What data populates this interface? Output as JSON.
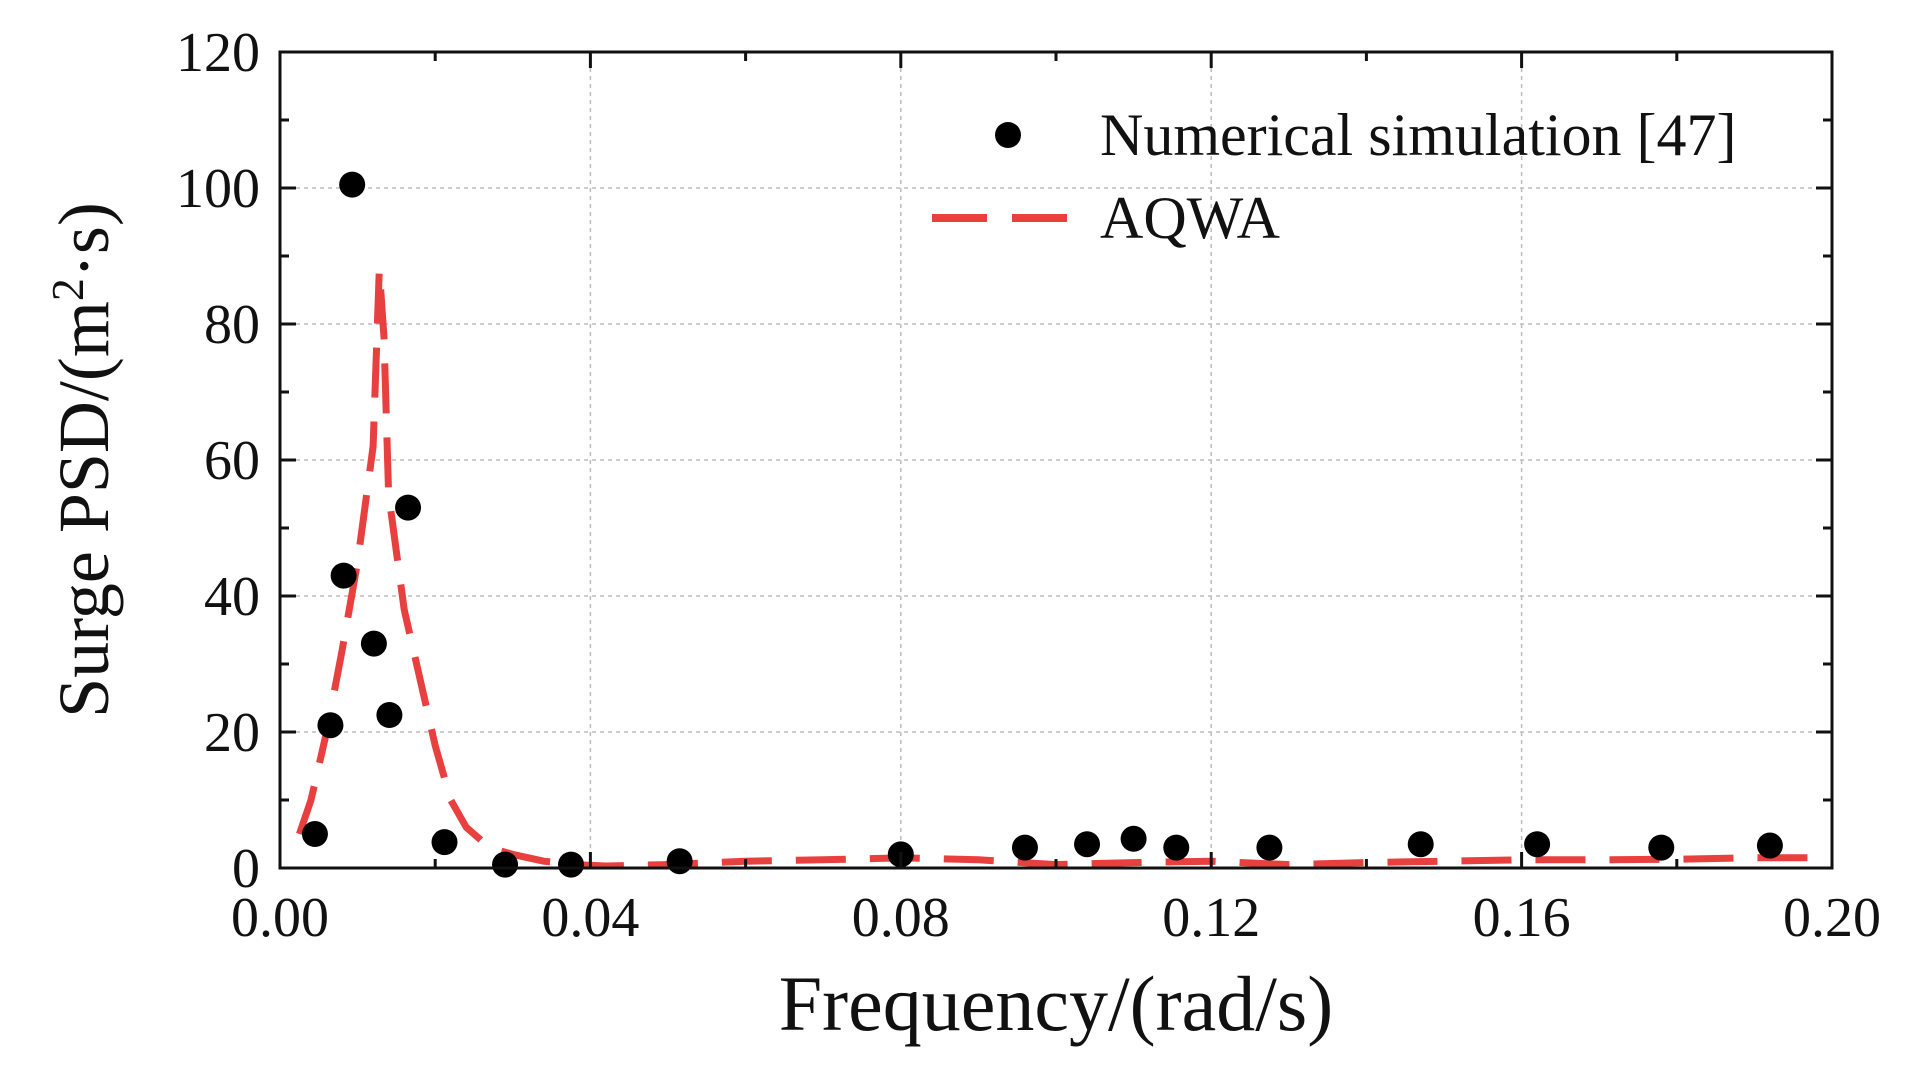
{
  "colors": {
    "points": "#000000",
    "aqwa": "#e8403f",
    "grid": "#bdbdbd",
    "axis": "#111111"
  },
  "chart_data": {
    "type": "scatter",
    "xlabel": "Frequency/(rad/s)",
    "ylabel_prefix": "Surge PSD/(m",
    "ylabel_superscript": "2",
    "ylabel_suffix": "·s)",
    "xlim": [
      0.0,
      0.2
    ],
    "ylim": [
      0,
      120
    ],
    "xticks": [
      0.0,
      0.04,
      0.08,
      0.12,
      0.16,
      0.2
    ],
    "xtick_labels": [
      "0.00",
      "0.04",
      "0.08",
      "0.12",
      "0.16",
      "0.20"
    ],
    "yticks": [
      0,
      20,
      40,
      60,
      80,
      100,
      120
    ],
    "ytick_labels": [
      "0",
      "20",
      "40",
      "60",
      "80",
      "100",
      "120"
    ],
    "grid": true,
    "legend_position": "top-right",
    "series": [
      {
        "name": "Numerical simulation [47]",
        "kind": "scatter",
        "color": "#000000",
        "x": [
          0.0045,
          0.0065,
          0.0082,
          0.0093,
          0.0121,
          0.0141,
          0.0165,
          0.0212,
          0.029,
          0.0375,
          0.0515,
          0.08,
          0.096,
          0.104,
          0.11,
          0.1155,
          0.1275,
          0.147,
          0.162,
          0.178,
          0.192
        ],
        "y": [
          5,
          21,
          43,
          100.5,
          33,
          22.5,
          53,
          3.8,
          0.5,
          0.5,
          1,
          2,
          3,
          3.5,
          4.3,
          3,
          3,
          3.5,
          3.5,
          3,
          3.3
        ]
      },
      {
        "name": "AQWA",
        "kind": "line",
        "style": "dashed",
        "color": "#e8403f",
        "x": [
          0.0025,
          0.004,
          0.006,
          0.008,
          0.01,
          0.012,
          0.0128,
          0.0134,
          0.014,
          0.016,
          0.018,
          0.02,
          0.022,
          0.024,
          0.027,
          0.03,
          0.034,
          0.038,
          0.042,
          0.05,
          0.06,
          0.07,
          0.08,
          0.09,
          0.1,
          0.11,
          0.12,
          0.13,
          0.14,
          0.15,
          0.16,
          0.17,
          0.18,
          0.19,
          0.197
        ],
        "y": [
          5,
          10,
          20,
          32,
          45,
          62,
          88,
          78,
          55,
          38,
          28,
          18,
          10,
          6,
          3,
          2,
          1,
          0.5,
          0.3,
          0.5,
          1,
          1.2,
          1.5,
          1.2,
          0.5,
          0.8,
          1,
          0.5,
          0.8,
          1,
          1.2,
          1.2,
          1.3,
          1.5,
          1.5
        ]
      }
    ]
  }
}
